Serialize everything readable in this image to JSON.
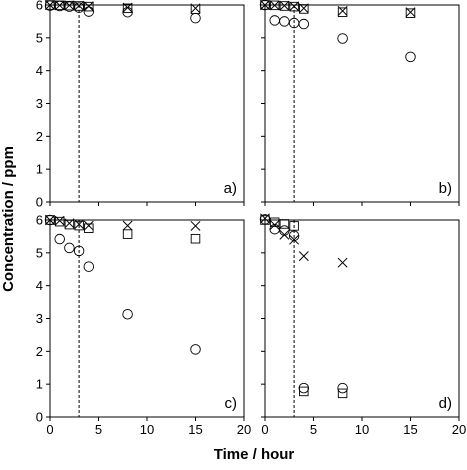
{
  "chart_data": {
    "type": "scatter",
    "xlabel": "Time / hour",
    "ylabel": "Concentration / ppm",
    "xlim": [
      0,
      20
    ],
    "ylim": [
      0,
      6
    ],
    "xticks": [
      "0",
      "5",
      "10",
      "15",
      "20"
    ],
    "yticks": [
      "0",
      "1",
      "2",
      "3",
      "4",
      "5",
      "6"
    ],
    "grid": false,
    "reference_line_x": 3,
    "marker_symbols": {
      "circle": "circle",
      "square": "square",
      "cross": "x"
    },
    "panels": [
      {
        "tag": "a)",
        "series": [
          {
            "marker": "circle",
            "x": [
              0,
              1,
              2,
              3,
              4,
              8,
              15
            ],
            "y": [
              5.98,
              5.97,
              5.95,
              5.92,
              5.8,
              5.78,
              5.6
            ]
          },
          {
            "marker": "square",
            "x": [
              0,
              1,
              2,
              3,
              4,
              8,
              15
            ],
            "y": [
              6.0,
              5.99,
              5.98,
              5.97,
              5.95,
              5.9,
              5.87
            ]
          },
          {
            "marker": "cross",
            "x": [
              0,
              1,
              2,
              3,
              4,
              8,
              15
            ],
            "y": [
              6.0,
              5.99,
              5.99,
              5.98,
              5.96,
              5.92,
              5.9
            ]
          }
        ]
      },
      {
        "tag": "b)",
        "series": [
          {
            "marker": "circle",
            "x": [
              0,
              1,
              2,
              3,
              4,
              8,
              15
            ],
            "y": [
              6.0,
              5.53,
              5.5,
              5.45,
              5.42,
              4.98,
              4.42
            ]
          },
          {
            "marker": "square",
            "x": [
              0,
              1,
              2,
              3,
              4,
              8,
              15
            ],
            "y": [
              6.0,
              5.99,
              5.97,
              5.95,
              5.88,
              5.78,
              5.75
            ]
          },
          {
            "marker": "cross",
            "x": [
              0,
              1,
              2,
              3,
              4,
              8,
              15
            ],
            "y": [
              6.0,
              5.99,
              5.98,
              5.96,
              5.9,
              5.82,
              5.78
            ]
          }
        ]
      },
      {
        "tag": "c)",
        "series": [
          {
            "marker": "circle",
            "x": [
              0,
              1,
              2,
              3,
              4,
              8,
              15
            ],
            "y": [
              6.0,
              5.42,
              5.15,
              5.06,
              4.58,
              3.13,
              2.06
            ]
          },
          {
            "marker": "square",
            "x": [
              0,
              1,
              2,
              3,
              4,
              8,
              15
            ],
            "y": [
              6.0,
              5.95,
              5.86,
              5.83,
              5.75,
              5.57,
              5.43
            ]
          },
          {
            "marker": "cross",
            "x": [
              0,
              1,
              2,
              3,
              4,
              8,
              15
            ],
            "y": [
              6.0,
              5.98,
              5.9,
              5.87,
              5.83,
              5.83,
              5.82
            ]
          }
        ]
      },
      {
        "tag": "d)",
        "series": [
          {
            "marker": "circle",
            "x": [
              0,
              1,
              2,
              3,
              4,
              8
            ],
            "y": [
              6.02,
              5.72,
              5.68,
              5.52,
              0.88,
              0.88
            ]
          },
          {
            "marker": "square",
            "x": [
              0,
              1,
              2,
              3,
              4,
              8
            ],
            "y": [
              6.0,
              5.93,
              5.88,
              5.82,
              0.78,
              0.72
            ]
          },
          {
            "marker": "cross",
            "x": [
              0,
              1,
              2,
              3,
              4,
              8
            ],
            "y": [
              6.05,
              5.85,
              5.55,
              5.4,
              4.9,
              4.7
            ]
          }
        ]
      }
    ]
  }
}
